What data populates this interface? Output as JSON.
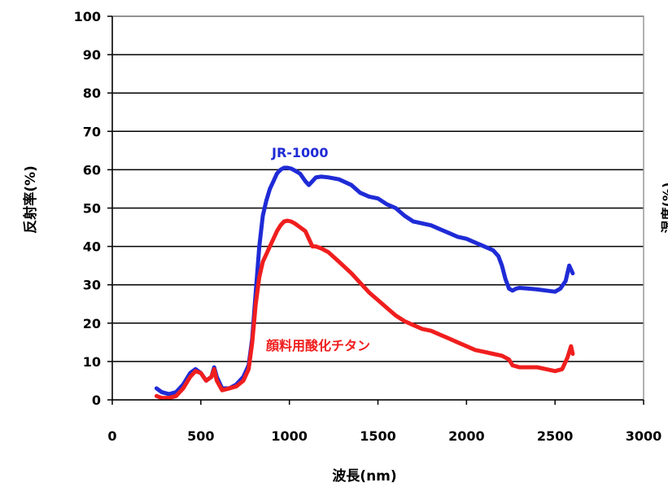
{
  "chart_data": {
    "type": "line",
    "title": "",
    "xlabel": "波長(nm)",
    "ylabel": "反射率(%)",
    "right_ylabel_partial": "湿度(%)",
    "xlim": [
      0,
      3000
    ],
    "ylim": [
      0,
      100
    ],
    "x_ticks": [
      "0",
      "500",
      "1000",
      "1500",
      "2000",
      "2500",
      "3000"
    ],
    "y_ticks": [
      "0",
      "10",
      "20",
      "30",
      "40",
      "50",
      "60",
      "70",
      "80",
      "90",
      "100"
    ],
    "grid": "horizontal",
    "legend": "inline-labels",
    "series": [
      {
        "name": "JR-1000",
        "color": "#1f2bd6",
        "x": [
          250,
          280,
          320,
          360,
          400,
          440,
          470,
          500,
          530,
          560,
          575,
          590,
          620,
          660,
          700,
          740,
          770,
          790,
          810,
          830,
          850,
          870,
          890,
          910,
          930,
          950,
          970,
          990,
          1010,
          1030,
          1060,
          1090,
          1110,
          1130,
          1150,
          1180,
          1220,
          1280,
          1350,
          1400,
          1450,
          1500,
          1550,
          1600,
          1650,
          1700,
          1750,
          1800,
          1850,
          1900,
          1950,
          2000,
          2050,
          2100,
          2150,
          2180,
          2200,
          2220,
          2240,
          2260,
          2280,
          2300,
          2350,
          2400,
          2450,
          2500,
          2530,
          2560,
          2580,
          2600
        ],
        "y": [
          3,
          2,
          1.5,
          2,
          4,
          7,
          8,
          7,
          5,
          6,
          8.5,
          6,
          3,
          3,
          4,
          6,
          9,
          16,
          28,
          40,
          48,
          52,
          55,
          57,
          59,
          60,
          60.5,
          60.5,
          60.3,
          59.8,
          59,
          57,
          56,
          57,
          58,
          58.2,
          58,
          57.5,
          56,
          54,
          53,
          52.5,
          51,
          50,
          48,
          46.5,
          46,
          45.5,
          44.5,
          43.5,
          42.5,
          42,
          41,
          40,
          39,
          37.5,
          35,
          31.5,
          29,
          28.5,
          29,
          29.2,
          29,
          28.8,
          28.5,
          28.2,
          29,
          31,
          35,
          33
        ]
      },
      {
        "name": "顔料用酸化チタン",
        "color": "#f01e1e",
        "x": [
          250,
          280,
          320,
          360,
          400,
          440,
          470,
          500,
          530,
          560,
          575,
          590,
          620,
          660,
          700,
          740,
          770,
          790,
          810,
          830,
          850,
          870,
          890,
          910,
          930,
          950,
          970,
          990,
          1010,
          1030,
          1060,
          1090,
          1110,
          1130,
          1150,
          1180,
          1220,
          1280,
          1350,
          1400,
          1450,
          1500,
          1550,
          1600,
          1650,
          1700,
          1750,
          1800,
          1850,
          1900,
          1950,
          2000,
          2050,
          2100,
          2150,
          2200,
          2240,
          2260,
          2300,
          2350,
          2400,
          2450,
          2500,
          2540,
          2570,
          2590,
          2600
        ],
        "y": [
          1,
          0.5,
          0.5,
          1,
          3,
          6,
          7.5,
          7,
          5,
          6,
          8,
          5,
          2.5,
          3,
          3.5,
          5,
          8,
          15,
          25,
          32,
          36,
          38,
          40,
          42,
          44,
          45.5,
          46.5,
          46.7,
          46.5,
          46,
          45,
          44,
          42,
          40,
          40,
          39.5,
          38.5,
          36,
          33,
          30.5,
          28,
          26,
          24,
          22,
          20.5,
          19.5,
          18.5,
          18,
          17,
          16,
          15,
          14,
          13,
          12.5,
          12,
          11.5,
          10.5,
          9,
          8.5,
          8.5,
          8.5,
          8,
          7.5,
          8,
          11,
          14,
          12
        ]
      }
    ]
  }
}
